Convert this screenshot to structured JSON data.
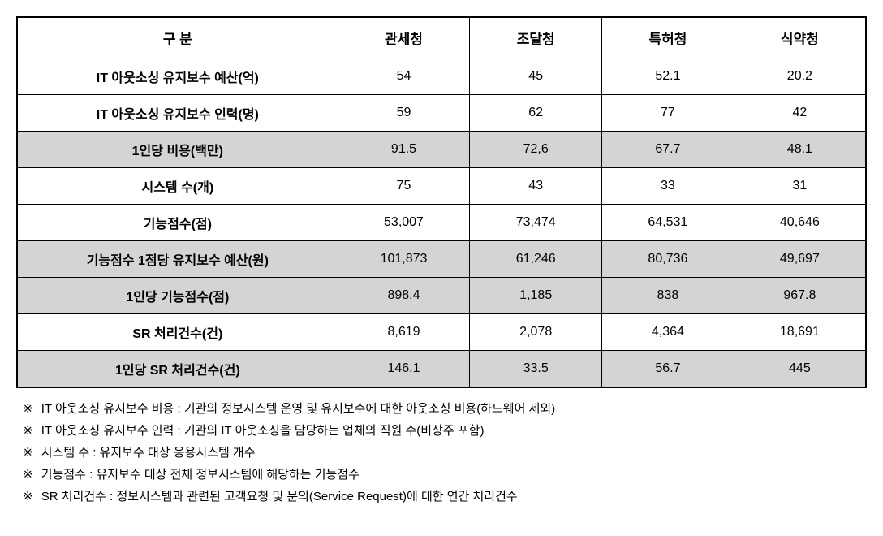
{
  "table": {
    "columns": [
      "구  분",
      "관세청",
      "조달청",
      "특허청",
      "식약청"
    ],
    "column_widths": [
      "340px",
      "140px",
      "140px",
      "140px",
      "140px"
    ],
    "border_color": "#000000",
    "outer_border_width": "2px",
    "inner_border_width": "1px",
    "shaded_bg": "#d4d4d4",
    "font_size": 16,
    "header_font_size": 17,
    "rows": [
      {
        "label": "IT 아웃소싱 유지보수 예산(억)",
        "values": [
          "54",
          "45",
          "52.1",
          "20.2"
        ],
        "shaded": false
      },
      {
        "label": "IT 아웃소싱 유지보수 인력(명)",
        "values": [
          "59",
          "62",
          "77",
          "42"
        ],
        "shaded": false
      },
      {
        "label": "1인당 비용(백만)",
        "values": [
          "91.5",
          "72,6",
          "67.7",
          "48.1"
        ],
        "shaded": true
      },
      {
        "label": "시스템 수(개)",
        "values": [
          "75",
          "43",
          "33",
          "31"
        ],
        "shaded": false
      },
      {
        "label": "기능점수(점)",
        "values": [
          "53,007",
          "73,474",
          "64,531",
          "40,646"
        ],
        "shaded": false
      },
      {
        "label": "기능점수 1점당 유지보수 예산(원)",
        "values": [
          "101,873",
          "61,246",
          "80,736",
          "49,697"
        ],
        "shaded": true
      },
      {
        "label": "1인당 기능점수(점)",
        "values": [
          "898.4",
          "1,185",
          "838",
          "967.8"
        ],
        "shaded": true
      },
      {
        "label": "SR 처리건수(건)",
        "values": [
          "8,619",
          "2,078",
          "4,364",
          "18,691"
        ],
        "shaded": false
      },
      {
        "label": "1인당 SR 처리건수(건)",
        "values": [
          "146.1",
          "33.5",
          "56.7",
          "445"
        ],
        "shaded": true
      }
    ]
  },
  "footnotes": {
    "marker": "※",
    "lines": [
      "IT 아웃소싱 유지보수 비용 : 기관의 정보시스템 운영 및 유지보수에 대한 아웃소싱 비용(하드웨어 제외)",
      "IT 아웃소싱 유지보수 인력 : 기관의 IT 아웃소싱을 담당하는 업체의 직원 수(비상주 포함)",
      "시스템 수 : 유지보수 대상 응용시스템 개수",
      "기능점수 : 유지보수 대상 전체 정보시스템에 해당하는 기능점수",
      "SR 처리건수 : 정보시스템과 관련된 고객요청 및 문의(Service Request)에 대한 연간 처리건수"
    ]
  }
}
